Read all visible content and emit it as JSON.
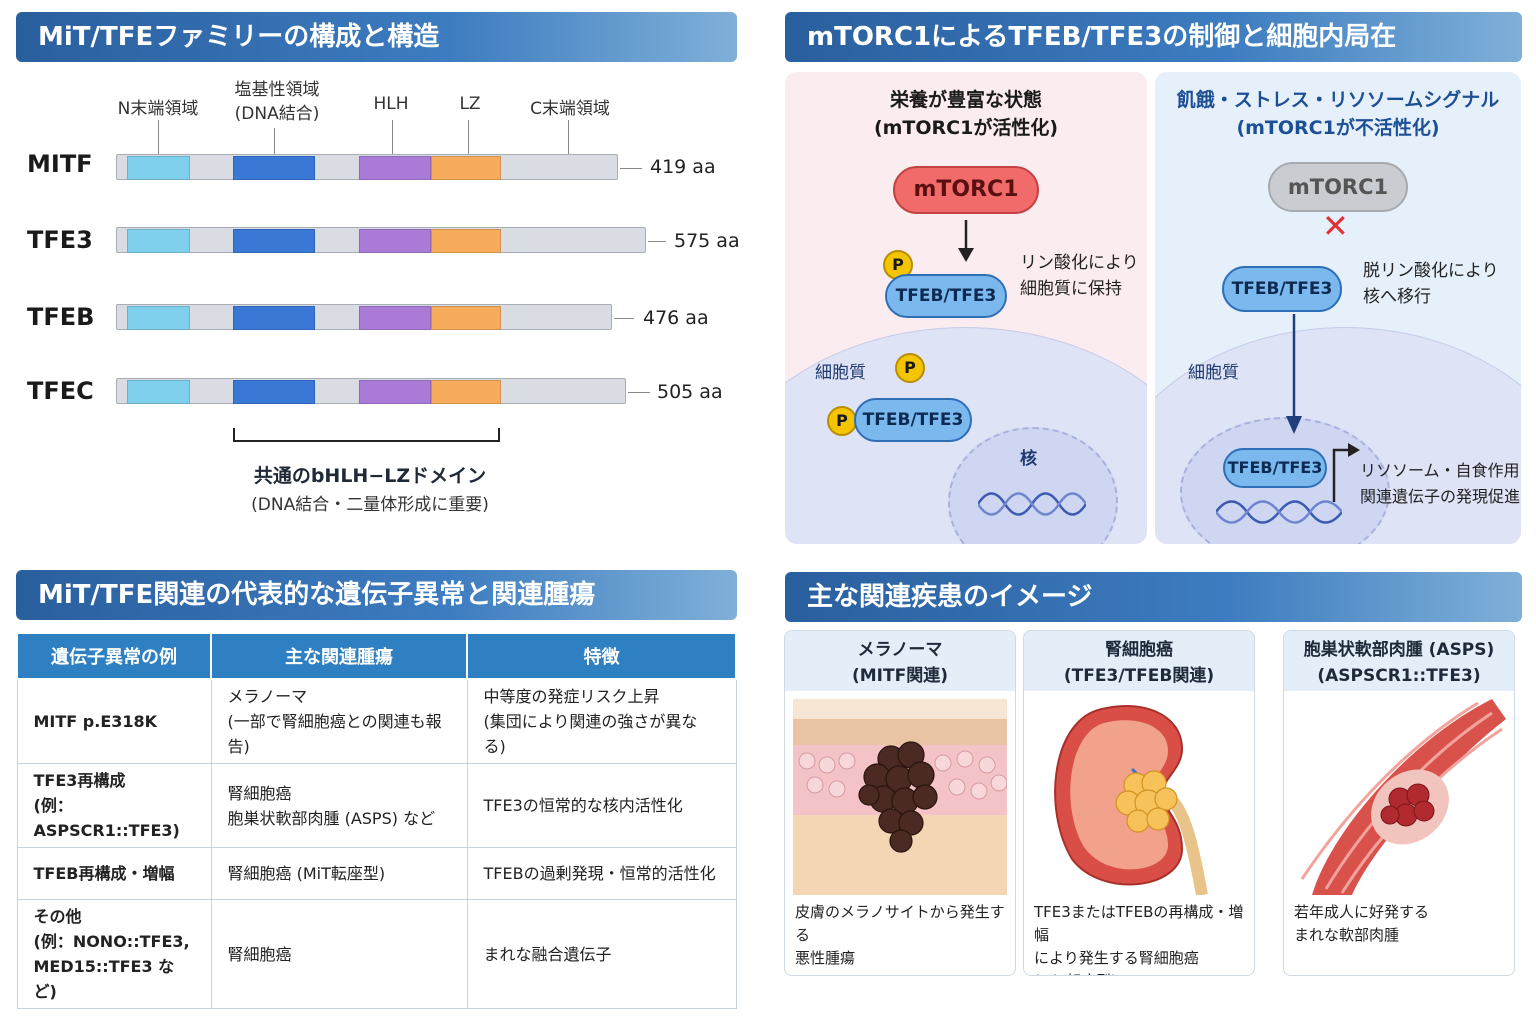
{
  "panel1": {
    "title": "MiT/TFEファミリーの構成と構造",
    "domain_labels": {
      "n": "N末端領域",
      "basic": "塩基性領域\n(DNA結合)",
      "hlh": "HLH",
      "lz": "LZ",
      "c": "C末端領域"
    },
    "genes": [
      {
        "name": "MITF",
        "length": "419 aa"
      },
      {
        "name": "TFE3",
        "length": "575 aa"
      },
      {
        "name": "TFEB",
        "length": "476 aa"
      },
      {
        "name": "TFEC",
        "length": "505 aa"
      }
    ],
    "bracket_title": "共通のbHLH−LZドメイン",
    "bracket_sub": "(DNA結合・二量体形成に重要)"
  },
  "panel2": {
    "title": "mTORC1によるTFEB/TFE3の制御と細胞内局在",
    "left": {
      "title": "栄養が豊富な状態\n(mTORC1が活性化)",
      "mtorc1": "mTORC1",
      "tf": "TFEB/TFE3",
      "p": "P",
      "note": "リン酸化により\n細胞質に保持",
      "cytoplasm": "細胞質",
      "nucleus": "核"
    },
    "right": {
      "title": "飢餓・ストレス・リソソームシグナル\n(mTORC1が不活性化)",
      "mtorc1": "mTORC1",
      "tf": "TFEB/TFE3",
      "note": "脱リン酸化により\n核へ移行",
      "cytoplasm": "細胞質",
      "gene_note": "リソソーム・自食作用\n関連遺伝子の発現促進"
    },
    "colors": {
      "active": "#f26b6b",
      "inactive": "#c9ccd1",
      "tf": "#7ab8ee",
      "phospho": "#f5c400"
    }
  },
  "panel3": {
    "title": "MiT/TFE関連の代表的な遺伝子異常と関連腫瘍",
    "headers": [
      "遺伝子異常の例",
      "主な関連腫瘍",
      "特徴"
    ],
    "rows": [
      [
        "MITF p.E318K",
        "メラノーマ\n(一部で腎細胞癌との関連も報告)",
        "中等度の発症リスク上昇\n(集団により関連の強さが異なる)"
      ],
      [
        "TFE3再構成\n(例：ASPSCR1::TFE3)",
        "腎細胞癌\n胞巣状軟部肉腫 (ASPS) など",
        "TFE3の恒常的な核内活性化"
      ],
      [
        "TFEB再構成・増幅",
        "腎細胞癌 (MiT転座型)",
        "TFEBの過剰発現・恒常的活性化"
      ],
      [
        "その他\n(例：NONO::TFE3,\nMED15::TFE3 など)",
        "腎細胞癌",
        "まれな融合遺伝子"
      ]
    ]
  },
  "panel4": {
    "title": "主な関連疾患のイメージ",
    "cards": [
      {
        "title": "メラノーマ\n(MITF関連)",
        "desc": "皮膚のメラノサイトから発生する\n悪性腫瘍"
      },
      {
        "title": "腎細胞癌\n(TFE3/TFEB関連)",
        "desc": "TFE3またはTFEBの再構成・増幅\nにより発生する腎細胞癌\n(MiT転座型)"
      },
      {
        "title": "胞巣状軟部肉腫 (ASPS)\n(ASPSCR1::TFE3)",
        "desc": "若年成人に好発する\nまれな軟部肉腫"
      }
    ]
  }
}
